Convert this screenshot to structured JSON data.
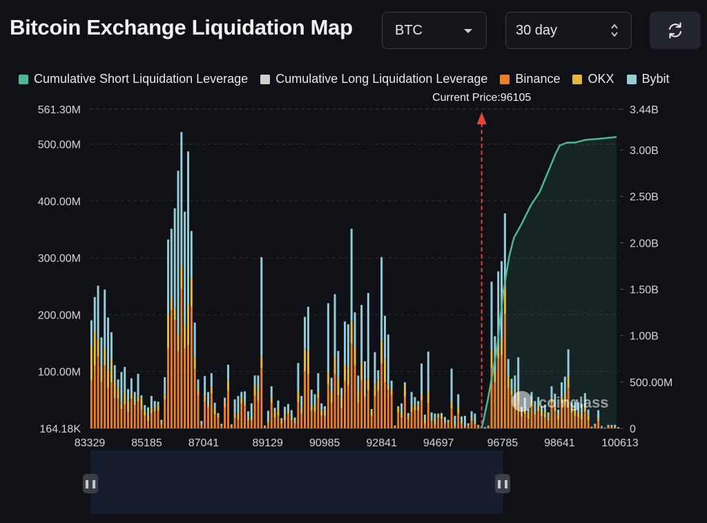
{
  "header": {
    "title": "Bitcoin Exchange Liquidation Map",
    "coin_select": "BTC",
    "range_select": "30 day"
  },
  "icons": {
    "coin_caret": "chevron-down-icon",
    "range_stepper": "updown-icon",
    "refresh": "refresh-icon"
  },
  "colors": {
    "background": "#0f1117",
    "binance": "#e8802a",
    "okx": "#e7b93a",
    "bybit": "#93ccd7",
    "cumulative_short": "#4fb792",
    "cumulative_long": "#cfcfcf",
    "current_price_marker": "#e0443a"
  },
  "watermark": "coinglass",
  "chart_data": {
    "type": "bar",
    "stacked": true,
    "legend": [
      {
        "name": "Cumulative Short Liquidation Leverage",
        "color": "#4fb792"
      },
      {
        "name": "Cumulative Long Liquidation Leverage",
        "color": "#cfcfcf"
      },
      {
        "name": "Binance",
        "color": "#e8802a"
      },
      {
        "name": "OKX",
        "color": "#e7b93a"
      },
      {
        "name": "Bybit",
        "color": "#93ccd7"
      }
    ],
    "legend_position": "top",
    "current_price_label": "Current Price:96105",
    "current_price": 96105,
    "x_ticks": [
      "83329",
      "85185",
      "87041",
      "89129",
      "90985",
      "92841",
      "94697",
      "96785",
      "98641",
      "100613"
    ],
    "x_range": [
      83329,
      100613
    ],
    "y_left_ticks": [
      "164.18K",
      "100.00M",
      "200.00M",
      "300.00M",
      "400.00M",
      "500.00M",
      "561.30M"
    ],
    "y_left_range": [
      0,
      561.3
    ],
    "y_left_unit": "M",
    "y_right_ticks": [
      "0",
      "500.00M",
      "1.00B",
      "1.50B",
      "2.00B",
      "2.50B",
      "3.00B",
      "3.44B"
    ],
    "y_right_range": [
      0,
      3.44
    ],
    "y_right_unit": "B",
    "grid": true,
    "bars": [
      [
        84,
        60,
        46
      ],
      [
        110,
        60,
        61
      ],
      [
        127,
        30,
        94
      ],
      [
        81,
        30,
        49
      ],
      [
        111,
        30,
        103
      ],
      [
        71,
        30,
        94
      ],
      [
        81,
        40,
        48
      ],
      [
        53,
        30,
        28
      ],
      [
        52,
        20,
        14
      ],
      [
        34,
        10,
        55
      ],
      [
        42,
        20,
        46
      ],
      [
        29,
        20,
        20
      ],
      [
        52,
        10,
        26
      ],
      [
        41,
        5,
        18
      ],
      [
        47,
        10,
        39
      ],
      [
        33,
        20,
        5
      ],
      [
        22,
        10,
        9
      ],
      [
        13,
        10,
        14
      ],
      [
        26,
        10,
        21
      ],
      [
        30,
        5,
        13
      ],
      [
        31,
        10,
        6
      ],
      [
        7,
        4,
        4
      ],
      [
        50,
        10,
        30
      ],
      [
        140,
        60,
        132
      ],
      [
        208,
        20,
        123
      ],
      [
        190,
        20,
        177
      ],
      [
        135,
        30,
        288
      ],
      [
        245,
        40,
        236
      ],
      [
        140,
        40,
        201
      ],
      [
        147,
        70,
        270
      ],
      [
        215,
        50,
        82
      ],
      [
        105,
        20,
        61
      ],
      [
        59,
        10,
        17
      ],
      [
        5,
        1,
        7
      ],
      [
        47,
        10,
        35
      ],
      [
        37,
        5,
        22
      ],
      [
        62,
        10,
        25
      ],
      [
        24,
        10,
        11
      ],
      [
        19,
        4,
        4
      ],
      [
        4,
        2,
        2
      ],
      [
        37,
        10,
        7
      ],
      [
        66,
        20,
        26
      ],
      [
        3,
        3,
        1
      ],
      [
        18,
        10,
        23
      ],
      [
        16,
        10,
        31
      ],
      [
        43,
        10,
        11
      ],
      [
        40,
        4,
        21
      ],
      [
        14,
        5,
        11
      ],
      [
        14,
        3,
        27
      ],
      [
        57,
        20,
        16
      ],
      [
        48,
        20,
        25
      ],
      [
        106,
        20,
        175
      ],
      [
        2,
        1,
        2
      ],
      [
        10,
        2,
        19
      ],
      [
        44,
        10,
        20
      ],
      [
        19,
        10,
        7
      ],
      [
        23,
        10,
        16
      ],
      [
        8,
        5,
        5
      ],
      [
        14,
        10,
        14
      ],
      [
        26,
        5,
        12
      ],
      [
        14,
        5,
        13
      ],
      [
        9,
        4,
        6
      ],
      [
        46,
        20,
        49
      ],
      [
        26,
        10,
        21
      ],
      [
        100,
        40,
        56
      ],
      [
        95,
        40,
        79
      ],
      [
        31,
        10,
        27
      ],
      [
        29,
        10,
        21
      ],
      [
        53,
        10,
        34
      ],
      [
        22,
        10,
        12
      ],
      [
        22,
        10,
        7
      ],
      [
        78,
        20,
        122
      ],
      [
        45,
        20,
        24
      ],
      [
        95,
        30,
        111
      ],
      [
        58,
        30,
        48
      ],
      [
        35,
        20,
        16
      ],
      [
        83,
        30,
        75
      ],
      [
        76,
        30,
        77
      ],
      [
        149,
        40,
        162
      ],
      [
        111,
        30,
        63
      ],
      [
        45,
        20,
        28
      ],
      [
        84,
        30,
        103
      ],
      [
        55,
        30,
        33
      ],
      [
        67,
        20,
        151
      ],
      [
        21,
        10,
        3
      ],
      [
        57,
        20,
        57
      ],
      [
        66,
        20,
        16
      ],
      [
        114,
        40,
        147
      ],
      [
        82,
        40,
        76
      ],
      [
        68,
        10,
        87
      ],
      [
        59,
        10,
        15
      ],
      [
        2,
        1,
        2
      ],
      [
        28,
        10,
        1
      ],
      [
        18,
        10,
        16
      ],
      [
        56,
        20,
        5
      ],
      [
        16,
        5,
        6
      ],
      [
        29,
        10,
        25
      ],
      [
        32,
        10,
        13
      ],
      [
        31,
        10,
        7
      ],
      [
        49,
        10,
        55
      ],
      [
        9,
        5,
        10
      ],
      [
        45,
        20,
        70
      ],
      [
        13,
        5,
        10
      ],
      [
        6,
        5,
        15
      ],
      [
        19,
        5,
        2
      ],
      [
        17,
        5,
        5
      ],
      [
        8,
        2,
        10
      ],
      [
        10,
        3,
        2
      ],
      [
        35,
        10,
        60
      ],
      [
        3,
        3,
        16
      ],
      [
        27,
        10,
        23
      ],
      [
        8,
        5,
        8
      ],
      [
        2,
        1,
        19
      ],
      [
        4,
        2,
        3
      ],
      [
        13,
        5,
        12
      ],
      [
        7,
        3,
        16
      ],
      [
        3,
        1,
        2
      ],
      [
        1,
        1,
        2
      ],
      [
        0,
        0,
        2
      ],
      [
        3,
        1,
        1
      ],
      [
        106,
        30,
        122
      ],
      [
        81,
        20,
        61
      ],
      [
        124,
        20,
        132
      ],
      [
        128,
        30,
        136
      ],
      [
        201,
        50,
        127
      ],
      [
        71,
        20,
        31
      ],
      [
        59,
        10,
        18
      ],
      [
        38,
        10,
        45
      ],
      [
        46,
        20,
        59
      ],
      [
        20,
        10,
        8
      ],
      [
        25,
        10,
        19
      ],
      [
        17,
        10,
        7
      ],
      [
        38,
        10,
        16
      ],
      [
        24,
        5,
        19
      ],
      [
        30,
        10,
        15
      ],
      [
        21,
        10,
        8
      ],
      [
        19,
        10,
        12
      ],
      [
        14,
        5,
        9
      ],
      [
        43,
        10,
        21
      ],
      [
        30,
        10,
        21
      ],
      [
        15,
        10,
        8
      ],
      [
        44,
        10,
        27
      ],
      [
        39,
        20,
        32
      ],
      [
        71,
        20,
        48
      ],
      [
        27,
        10,
        8
      ],
      [
        22,
        10,
        15
      ],
      [
        19,
        10,
        17
      ],
      [
        16,
        10,
        17
      ],
      [
        29,
        10,
        23
      ],
      [
        14,
        10,
        9
      ],
      [
        1,
        1,
        1
      ],
      [
        4,
        2,
        2
      ],
      [
        13,
        5,
        14
      ],
      [
        2,
        1,
        1
      ],
      [
        0,
        0,
        1
      ],
      [
        2,
        1,
        3
      ],
      [
        3,
        1,
        2
      ],
      [
        1,
        1,
        4
      ],
      [
        0,
        0,
        2
      ]
    ],
    "cumulative_short": [
      [
        96105,
        0
      ],
      [
        96300,
        0.3
      ],
      [
        96600,
        0.85
      ],
      [
        96800,
        1.45
      ],
      [
        97000,
        1.85
      ],
      [
        97150,
        2.05
      ],
      [
        97400,
        2.2
      ],
      [
        97700,
        2.4
      ],
      [
        98000,
        2.55
      ],
      [
        98250,
        2.75
      ],
      [
        98500,
        2.95
      ],
      [
        98650,
        3.05
      ],
      [
        98900,
        3.08
      ],
      [
        99150,
        3.08
      ],
      [
        99500,
        3.11
      ],
      [
        99900,
        3.12
      ],
      [
        100200,
        3.13
      ],
      [
        100500,
        3.14
      ]
    ]
  }
}
